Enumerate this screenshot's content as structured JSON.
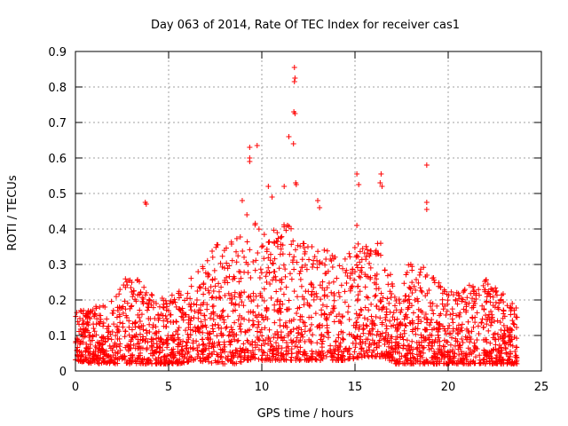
{
  "chart_data": {
    "type": "scatter",
    "title": "Day 063 of 2014, Rate Of TEC Index for receiver cas1",
    "xlabel": "GPS time / hours",
    "ylabel": "ROTI / TECUs",
    "xlim": [
      0,
      25
    ],
    "ylim": [
      0,
      0.9
    ],
    "x_ticks": [
      0,
      5,
      10,
      15,
      20,
      25
    ],
    "y_ticks": [
      0,
      0.1,
      0.2,
      0.3,
      0.4,
      0.5,
      0.6,
      0.7,
      0.8,
      0.9
    ],
    "grid": true,
    "marker": "+",
    "color": "#ff0000",
    "notable_points": [
      {
        "x": 3.75,
        "y": 0.475
      },
      {
        "x": 3.8,
        "y": 0.47
      },
      {
        "x": 9.35,
        "y": 0.63
      },
      {
        "x": 9.35,
        "y": 0.6
      },
      {
        "x": 9.35,
        "y": 0.59
      },
      {
        "x": 9.75,
        "y": 0.635
      },
      {
        "x": 11.2,
        "y": 0.52
      },
      {
        "x": 11.45,
        "y": 0.66
      },
      {
        "x": 11.75,
        "y": 0.855
      },
      {
        "x": 11.78,
        "y": 0.825
      },
      {
        "x": 11.75,
        "y": 0.815
      },
      {
        "x": 11.72,
        "y": 0.73
      },
      {
        "x": 11.78,
        "y": 0.725
      },
      {
        "x": 11.7,
        "y": 0.64
      },
      {
        "x": 11.82,
        "y": 0.53
      },
      {
        "x": 11.85,
        "y": 0.525
      },
      {
        "x": 13.0,
        "y": 0.48
      },
      {
        "x": 13.1,
        "y": 0.46
      },
      {
        "x": 15.1,
        "y": 0.555
      },
      {
        "x": 15.2,
        "y": 0.525
      },
      {
        "x": 15.1,
        "y": 0.41
      },
      {
        "x": 16.4,
        "y": 0.555
      },
      {
        "x": 16.35,
        "y": 0.53
      },
      {
        "x": 16.45,
        "y": 0.52
      },
      {
        "x": 18.85,
        "y": 0.58
      },
      {
        "x": 18.85,
        "y": 0.475
      },
      {
        "x": 18.85,
        "y": 0.455
      },
      {
        "x": 8.95,
        "y": 0.48
      },
      {
        "x": 9.2,
        "y": 0.44
      },
      {
        "x": 10.35,
        "y": 0.52
      },
      {
        "x": 10.55,
        "y": 0.49
      }
    ],
    "density_profile": [
      {
        "x": 0.0,
        "low": 0.03,
        "high": 0.17
      },
      {
        "x": 1.0,
        "low": 0.02,
        "high": 0.18
      },
      {
        "x": 2.0,
        "low": 0.02,
        "high": 0.2
      },
      {
        "x": 2.9,
        "low": 0.02,
        "high": 0.29
      },
      {
        "x": 3.5,
        "low": 0.02,
        "high": 0.25
      },
      {
        "x": 4.5,
        "low": 0.02,
        "high": 0.2
      },
      {
        "x": 5.5,
        "low": 0.02,
        "high": 0.24
      },
      {
        "x": 6.5,
        "low": 0.03,
        "high": 0.28
      },
      {
        "x": 7.5,
        "low": 0.02,
        "high": 0.36
      },
      {
        "x": 8.5,
        "low": 0.02,
        "high": 0.37
      },
      {
        "x": 9.5,
        "low": 0.03,
        "high": 0.42
      },
      {
        "x": 10.5,
        "low": 0.03,
        "high": 0.4
      },
      {
        "x": 11.5,
        "low": 0.03,
        "high": 0.42
      },
      {
        "x": 12.5,
        "low": 0.03,
        "high": 0.36
      },
      {
        "x": 13.5,
        "low": 0.03,
        "high": 0.34
      },
      {
        "x": 14.5,
        "low": 0.03,
        "high": 0.32
      },
      {
        "x": 15.5,
        "low": 0.04,
        "high": 0.38
      },
      {
        "x": 16.5,
        "low": 0.04,
        "high": 0.38
      },
      {
        "x": 17.2,
        "low": 0.02,
        "high": 0.2
      },
      {
        "x": 18.0,
        "low": 0.02,
        "high": 0.33
      },
      {
        "x": 19.0,
        "low": 0.02,
        "high": 0.28
      },
      {
        "x": 20.0,
        "low": 0.02,
        "high": 0.22
      },
      {
        "x": 21.0,
        "low": 0.02,
        "high": 0.24
      },
      {
        "x": 22.0,
        "low": 0.02,
        "high": 0.26
      },
      {
        "x": 23.0,
        "low": 0.02,
        "high": 0.22
      },
      {
        "x": 23.7,
        "low": 0.02,
        "high": 0.18
      }
    ]
  }
}
